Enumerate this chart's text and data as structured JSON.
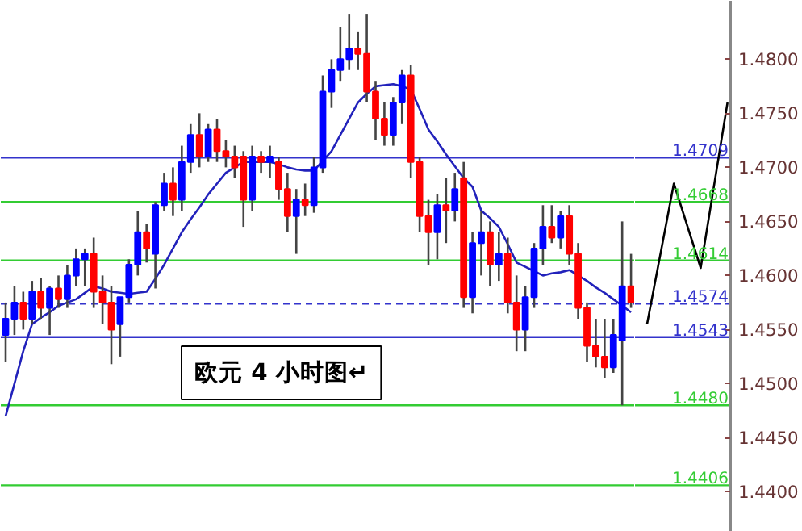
{
  "chart_data": [
    {
      "type": "candlestick",
      "categories": [
        null,
        null,
        null,
        null,
        null,
        null,
        null,
        null,
        null,
        null,
        null,
        null,
        null,
        null,
        null,
        null,
        null,
        null,
        null,
        null,
        null,
        null,
        null,
        null,
        null,
        null,
        null,
        null,
        null,
        null,
        null,
        null,
        null,
        null,
        null,
        null,
        null,
        null,
        null,
        null,
        null,
        null,
        null,
        null,
        null,
        null,
        null,
        null,
        null,
        null,
        null,
        null,
        null,
        null,
        null,
        null,
        null,
        null,
        null,
        null,
        null,
        null,
        null,
        null,
        null,
        null,
        null,
        null,
        null,
        null,
        null,
        null
      ],
      "ohlc": [
        [
          1.4545,
          1.4575,
          1.452,
          1.456
        ],
        [
          1.456,
          1.459,
          1.4545,
          1.4575
        ],
        [
          1.4575,
          1.4585,
          1.455,
          1.456
        ],
        [
          1.456,
          1.4595,
          1.4555,
          1.4585
        ],
        [
          1.4585,
          1.4598,
          1.456,
          1.457
        ],
        [
          1.457,
          1.459,
          1.4545,
          1.4588
        ],
        [
          1.4588,
          1.46,
          1.457,
          1.4578
        ],
        [
          1.4578,
          1.461,
          1.457,
          1.46
        ],
        [
          1.46,
          1.4625,
          1.459,
          1.4615
        ],
        [
          1.4615,
          1.4625,
          1.459,
          1.462
        ],
        [
          1.462,
          1.4635,
          1.457,
          1.4585
        ],
        [
          1.4585,
          1.46,
          1.4555,
          1.4575
        ],
        [
          1.4575,
          1.459,
          1.4518,
          1.455
        ],
        [
          1.4555,
          1.458,
          1.4525,
          1.458
        ],
        [
          1.458,
          1.4615,
          1.4575,
          1.461
        ],
        [
          1.461,
          1.466,
          1.46,
          1.464
        ],
        [
          1.464,
          1.4648,
          1.4612,
          1.4625
        ],
        [
          1.462,
          1.4668,
          1.4588,
          1.4665
        ],
        [
          1.4665,
          1.4695,
          1.466,
          1.4685
        ],
        [
          1.4685,
          1.47,
          1.4655,
          1.467
        ],
        [
          1.467,
          1.472,
          1.466,
          1.4705
        ],
        [
          1.4705,
          1.474,
          1.4695,
          1.473
        ],
        [
          1.473,
          1.475,
          1.47,
          1.471
        ],
        [
          1.471,
          1.474,
          1.4705,
          1.4735
        ],
        [
          1.4735,
          1.4745,
          1.4705,
          1.4715
        ],
        [
          1.4715,
          1.4725,
          1.47,
          1.471
        ],
        [
          1.471,
          1.472,
          1.469,
          1.47
        ],
        [
          1.471,
          1.4715,
          1.4645,
          1.467
        ],
        [
          1.467,
          1.472,
          1.466,
          1.471
        ],
        [
          1.471,
          1.4715,
          1.4695,
          1.4705
        ],
        [
          1.4705,
          1.472,
          1.469,
          1.471
        ],
        [
          1.4705,
          1.471,
          1.467,
          1.468
        ],
        [
          1.468,
          1.4695,
          1.464,
          1.4655
        ],
        [
          1.4655,
          1.468,
          1.462,
          1.467
        ],
        [
          1.467,
          1.4685,
          1.4655,
          1.4665
        ],
        [
          1.4665,
          1.471,
          1.4658,
          1.47
        ],
        [
          1.47,
          1.4785,
          1.4695,
          1.477
        ],
        [
          1.477,
          1.48,
          1.4755,
          1.479
        ],
        [
          1.479,
          1.483,
          1.478,
          1.48
        ],
        [
          1.48,
          1.4842,
          1.479,
          1.481
        ],
        [
          1.481,
          1.4825,
          1.479,
          1.4805
        ],
        [
          1.4805,
          1.4842,
          1.476,
          1.477
        ],
        [
          1.477,
          1.478,
          1.4725,
          1.4745
        ],
        [
          1.4745,
          1.476,
          1.472,
          1.473
        ],
        [
          1.473,
          1.4765,
          1.472,
          1.476
        ],
        [
          1.476,
          1.479,
          1.474,
          1.4785
        ],
        [
          1.4785,
          1.4795,
          1.469,
          1.4705
        ],
        [
          1.4705,
          1.471,
          1.464,
          1.4655
        ],
        [
          1.4655,
          1.467,
          1.461,
          1.464
        ],
        [
          1.464,
          1.4675,
          1.4615,
          1.4665
        ],
        [
          1.4665,
          1.469,
          1.463,
          1.466
        ],
        [
          1.466,
          1.4695,
          1.465,
          1.468
        ],
        [
          1.469,
          1.4705,
          1.457,
          1.458
        ],
        [
          1.458,
          1.464,
          1.4565,
          1.463
        ],
        [
          1.463,
          1.466,
          1.46,
          1.464
        ],
        [
          1.464,
          1.465,
          1.459,
          1.461
        ],
        [
          1.461,
          1.464,
          1.4595,
          1.462
        ],
        [
          1.462,
          1.4635,
          1.4565,
          1.4575
        ],
        [
          1.4575,
          1.46,
          1.453,
          1.455
        ],
        [
          1.455,
          1.459,
          1.453,
          1.458
        ],
        [
          1.458,
          1.463,
          1.457,
          1.4625
        ],
        [
          1.4625,
          1.4665,
          1.461,
          1.4645
        ],
        [
          1.4645,
          1.4665,
          1.463,
          1.4635
        ],
        [
          1.4635,
          1.466,
          1.4625,
          1.4655
        ],
        [
          1.4655,
          1.4665,
          1.461,
          1.462
        ],
        [
          1.462,
          1.463,
          1.456,
          1.457
        ],
        [
          1.457,
          1.4575,
          1.452,
          1.4535
        ],
        [
          1.4535,
          1.456,
          1.4515,
          1.4525
        ],
        [
          1.4525,
          1.456,
          1.4505,
          1.4515
        ],
        [
          1.4515,
          1.456,
          1.451,
          1.4545
        ],
        [
          1.454,
          1.465,
          1.448,
          1.459
        ],
        [
          1.459,
          1.462,
          1.457,
          1.4575
        ]
      ],
      "colors": [
        "#0000ff",
        "#0000ff",
        "#ff0000",
        "#0000ff",
        "#ff0000",
        "#0000ff",
        "#ff0000",
        "#0000ff",
        "#0000ff",
        "#0000ff",
        "#ff0000",
        "#ff0000",
        "#ff0000",
        "#0000ff",
        "#0000ff",
        "#0000ff",
        "#ff0000",
        "#0000ff",
        "#0000ff",
        "#ff0000",
        "#0000ff",
        "#0000ff",
        "#ff0000",
        "#0000ff",
        "#ff0000",
        "#ff0000",
        "#ff0000",
        "#ff0000",
        "#0000ff",
        "#ff0000",
        "#0000ff",
        "#ff0000",
        "#ff0000",
        "#0000ff",
        "#ff0000",
        "#0000ff",
        "#0000ff",
        "#0000ff",
        "#0000ff",
        "#0000ff",
        "#ff0000",
        "#ff0000",
        "#ff0000",
        "#ff0000",
        "#0000ff",
        "#0000ff",
        "#ff0000",
        "#ff0000",
        "#ff0000",
        "#0000ff",
        "#ff0000",
        "#0000ff",
        "#ff0000",
        "#0000ff",
        "#0000ff",
        "#ff0000",
        "#0000ff",
        "#ff0000",
        "#ff0000",
        "#0000ff",
        "#0000ff",
        "#0000ff",
        "#ff0000",
        "#0000ff",
        "#ff0000",
        "#ff0000",
        "#ff0000",
        "#ff0000",
        "#ff0000",
        "#0000ff",
        "#0000ff",
        "#ff0000"
      ],
      "series": [
        {
          "type": "line",
          "color": "#2222bb",
          "values": [
            1.447,
            1.45,
            1.453,
            1.4555,
            1.4561,
            1.4566,
            1.4572,
            1.4575,
            1.4578,
            1.4584,
            1.459,
            1.4588,
            1.4585,
            1.4584,
            1.4583,
            1.4584,
            1.4585,
            1.4597,
            1.461,
            1.4625,
            1.464,
            1.4652,
            1.4663,
            1.4675,
            1.4685,
            1.4695,
            1.47,
            1.4705,
            1.4705,
            1.4705,
            1.4705,
            1.4703,
            1.47,
            1.4698,
            1.4697,
            1.4697,
            1.4706,
            1.4715,
            1.473,
            1.4745,
            1.476,
            1.4768,
            1.4775,
            1.4776,
            1.4777,
            1.4775,
            1.4772,
            1.4754,
            1.4735,
            1.4724,
            1.4712,
            1.4701,
            1.469,
            1.4682,
            1.466,
            1.4653,
            1.4645,
            1.4629,
            1.4612,
            1.4608,
            1.4604,
            1.46,
            1.4602,
            1.4603,
            1.4605,
            1.46,
            1.4595,
            1.4589,
            1.4584,
            1.4578,
            1.4572,
            1.4566
          ]
        }
      ],
      "ref_lines": [
        {
          "axis": "y",
          "value": 1.4709,
          "color": "#3333cc",
          "line_style": "solid"
        },
        {
          "axis": "y",
          "value": 1.4668,
          "color": "#33cc33",
          "line_style": "solid"
        },
        {
          "axis": "y",
          "value": 1.4614,
          "color": "#33cc33",
          "line_style": "solid"
        },
        {
          "axis": "y",
          "value": 1.4574,
          "color": "#3333cc",
          "line_style": "dashed"
        },
        {
          "axis": "y",
          "value": 1.4543,
          "color": "#3333cc",
          "line_style": "solid"
        },
        {
          "axis": "y",
          "value": 1.448,
          "color": "#33cc33",
          "line_style": "solid"
        },
        {
          "axis": "y",
          "value": 1.4406,
          "color": "#33cc33",
          "line_style": "solid"
        }
      ],
      "annotations": [
        "欧元 4 小时图↵"
      ],
      "ylim": [
        1.4363,
        1.4854
      ],
      "tick_labels": false
    },
    {
      "type": "line",
      "categories": [
        null,
        null,
        null,
        null
      ],
      "series": [
        {
          "color": "#000000",
          "values": [
            1.4555,
            1.4685,
            1.4607,
            1.476
          ]
        }
      ],
      "ref_lines": [
        {
          "axis": "y",
          "value": 1.4709,
          "label": "1.4709",
          "color": "#3333cc",
          "line_style": "solid"
        },
        {
          "axis": "y",
          "value": 1.4668,
          "label": "1.4668",
          "color": "#33cc33",
          "line_style": "solid"
        },
        {
          "axis": "y",
          "value": 1.4614,
          "label": "1.4614",
          "color": "#33cc33",
          "line_style": "solid"
        },
        {
          "axis": "y",
          "value": 1.4574,
          "label": "1.4574",
          "color": "#3333cc",
          "line_style": "dashed"
        },
        {
          "axis": "y",
          "value": 1.4543,
          "label": "1.4543",
          "color": "#3333cc",
          "line_style": "solid"
        },
        {
          "axis": "y",
          "value": 1.448,
          "label": "1.4480",
          "color": "#33cc33",
          "line_style": "solid"
        },
        {
          "axis": "y",
          "value": 1.4406,
          "label": "1.4406",
          "color": "#33cc33",
          "line_style": "solid"
        }
      ],
      "ylim": [
        1.4363,
        1.4854
      ],
      "yticks": [
        {
          "value": 1.44,
          "label": "1.4400"
        },
        {
          "value": 1.445,
          "label": "1.4450"
        },
        {
          "value": 1.45,
          "label": "1.4500"
        },
        {
          "value": 1.455,
          "label": "1.4550"
        },
        {
          "value": 1.46,
          "label": "1.4600"
        },
        {
          "value": 1.465,
          "label": "1.4650"
        },
        {
          "value": 1.47,
          "label": "1.4700"
        },
        {
          "value": 1.475,
          "label": "1.4750"
        },
        {
          "value": 1.48,
          "label": "1.4800"
        }
      ],
      "tick_labels": "y"
    }
  ]
}
